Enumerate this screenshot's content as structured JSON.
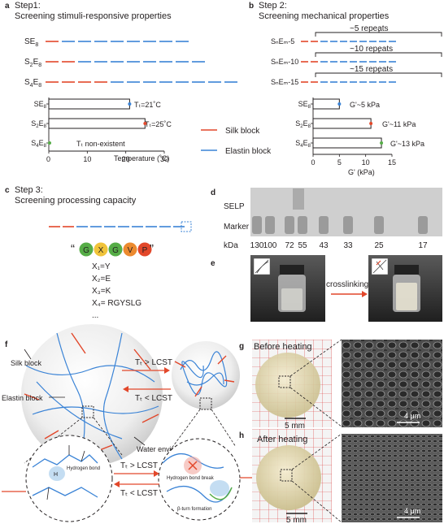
{
  "panel_a": {
    "letter": "a",
    "title1": "Step1:",
    "title2": "Screening stimuli-responsive properties",
    "rows": [
      {
        "label_main": "SE",
        "label_sub": "8",
        "segments": "1R 4B"
      },
      {
        "label_main": "S",
        "label_sub1": "2",
        "label_mid": "E",
        "label_sub": "8"
      },
      {
        "label_main": "S",
        "label_sub1": "4",
        "label_mid": "E",
        "label_sub": "8"
      }
    ],
    "annotations": [
      "Tₜ=21˚C",
      "Tₜ=25˚C",
      "Tₜ non-existent"
    ],
    "legend_silk": "Silk block",
    "legend_elastin": "Elastin block",
    "xlabel": "Temperature (˚C)",
    "ticks": [
      "0",
      "10",
      "20",
      "30"
    ]
  },
  "panel_b": {
    "letter": "b",
    "title1": "Step 2:",
    "title2": "Screening mechanical properties",
    "repeats": [
      "~5 repeats",
      "~10 repeats",
      "~15 repeats"
    ],
    "row_labels": [
      "SₙEₘ-5",
      "SₙEₘ-10",
      "SₙEₘ-15"
    ],
    "annotations": [
      "G'~5 kPa",
      "G'~11 kPa",
      "G'~13 kPa"
    ],
    "xlabel": "G' (kPa)",
    "ticks": [
      "0",
      "5",
      "10",
      "15"
    ]
  },
  "chart_data": [
    {
      "type": "bar",
      "orientation": "horizontal",
      "categories": [
        "SE8",
        "S2E8",
        "S4E8"
      ],
      "values": [
        21,
        25,
        0
      ],
      "xlabel": "Temperature (˚C)",
      "xlim": [
        0,
        30
      ]
    },
    {
      "type": "bar",
      "orientation": "horizontal",
      "categories": [
        "SE8",
        "S2E8",
        "S4E8"
      ],
      "values": [
        5,
        11,
        13
      ],
      "xlabel": "G' (kPa)",
      "xlim": [
        0,
        15
      ]
    }
  ],
  "panel_c": {
    "letter": "c",
    "title1": "Step 3:",
    "title2": "Screening processing capacity",
    "quote_open": "“",
    "quote_close": "”",
    "motif": [
      "G",
      "X",
      "G",
      "V",
      "P"
    ],
    "substitutions": [
      "X₁=Y",
      "X₂=E",
      "X₃=K",
      "X₄= RGYSLG",
      "..."
    ]
  },
  "panel_d": {
    "letter": "d",
    "lane1": "SELP",
    "lane2": "Marker",
    "unit": "kDa",
    "markers": [
      "130",
      "100",
      "72",
      "55",
      "43",
      "33",
      "25",
      "17"
    ]
  },
  "panel_e": {
    "letter": "e",
    "arrow_label": "crosslinking"
  },
  "panel_f": {
    "letter": "f",
    "silk_block": "Silk block",
    "elastin_block": "Elastin block",
    "water": "Water environment",
    "up_transition": "Tₜ > LCST",
    "down_transition": "Tₜ < LCST",
    "hydrogen_bond": "Hydrogen bond",
    "hbond_break": "Hydrogen bond break",
    "beta_turn": "β-turn formation"
  },
  "panel_g": {
    "letter": "g",
    "title": "Before heating",
    "scale_big": "5 mm",
    "scale_small": "4 μm"
  },
  "panel_h": {
    "letter": "h",
    "title": "After heating",
    "scale_big": "5 mm",
    "scale_small": "4 μm"
  },
  "colors": {
    "silk": "#e2472a",
    "elastin": "#3a83d6",
    "G": "#56ad47",
    "X": "#f0c33a",
    "V": "#ec8a2f",
    "P": "#e2472a"
  }
}
